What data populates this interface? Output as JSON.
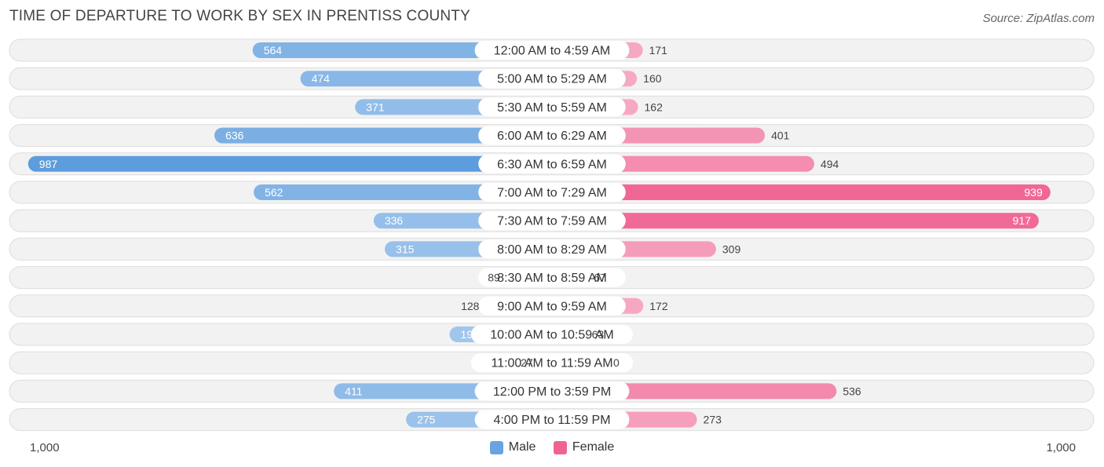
{
  "header": {
    "title": "TIME OF DEPARTURE TO WORK BY SEX IN PRENTISS COUNTY",
    "source": "Source: ZipAtlas.com"
  },
  "legend": {
    "male_label": "Male",
    "female_label": "Female"
  },
  "axis": {
    "left_label": "1,000",
    "right_label": "1,000"
  },
  "colors": {
    "male_strong": "#5b9bdd",
    "male_light": "#aacbed",
    "female_strong": "#f06292",
    "female_light": "#f7b3cb",
    "row_bg": "#f1f1f1",
    "row_border": "#dcdcdc"
  },
  "chart_data": {
    "type": "bar",
    "orientation": "horizontal-diverging",
    "title": "TIME OF DEPARTURE TO WORK BY SEX IN PRENTISS COUNTY",
    "categories": [
      "12:00 AM to 4:59 AM",
      "5:00 AM to 5:29 AM",
      "5:30 AM to 5:59 AM",
      "6:00 AM to 6:29 AM",
      "6:30 AM to 6:59 AM",
      "7:00 AM to 7:29 AM",
      "7:30 AM to 7:59 AM",
      "8:00 AM to 8:29 AM",
      "8:30 AM to 8:59 AM",
      "9:00 AM to 9:59 AM",
      "10:00 AM to 10:59 AM",
      "11:00 AM to 11:59 AM",
      "12:00 PM to 3:59 PM",
      "4:00 PM to 11:59 PM"
    ],
    "series": [
      {
        "name": "Male",
        "values": [
          564,
          474,
          371,
          636,
          987,
          562,
          336,
          315,
          89,
          128,
          193,
          27,
          411,
          275
        ]
      },
      {
        "name": "Female",
        "values": [
          171,
          160,
          162,
          401,
          494,
          939,
          917,
          309,
          67,
          172,
          63,
          0,
          536,
          273
        ]
      }
    ],
    "xlim": [
      -1000,
      1000
    ],
    "legend_position": "bottom-center"
  }
}
